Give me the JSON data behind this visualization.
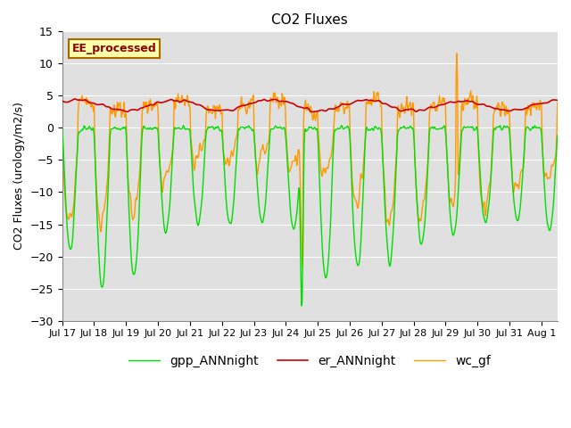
{
  "title": "CO2 Fluxes",
  "ylabel": "CO2 Fluxes (urology/m2/s)",
  "xlabel": "",
  "ylim": [
    -30,
    15
  ],
  "yticks": [
    -30,
    -25,
    -20,
    -15,
    -10,
    -5,
    0,
    5,
    10,
    15
  ],
  "xtick_labels": [
    "Jul 17",
    "Jul 18",
    "Jul 19",
    "Jul 20",
    "Jul 21",
    "Jul 22",
    "Jul 23",
    "Jul 24",
    "Jul 25",
    "Jul 26",
    "Jul 27",
    "Jul 28",
    "Jul 29",
    "Jul 30",
    "Jul 31",
    "Aug 1"
  ],
  "n_days": 15.5,
  "n_points": 744,
  "background_color": "#ffffff",
  "plot_bg_color": "#e0e0e0",
  "grid_color": "#ffffff",
  "line_colors": {
    "gpp": "#00dd00",
    "er": "#cc0000",
    "wc": "#ff9900"
  },
  "line_widths": {
    "gpp": 1.0,
    "er": 1.2,
    "wc": 1.0
  },
  "legend_labels": {
    "gpp": "gpp_ANNnight",
    "er": "er_ANNnight",
    "wc": "wc_gf"
  },
  "watermark_text": "EE_processed",
  "watermark_bg": "#ffffaa",
  "watermark_border": "#aa6600",
  "title_fontsize": 11,
  "axis_fontsize": 9,
  "legend_fontsize": 10
}
